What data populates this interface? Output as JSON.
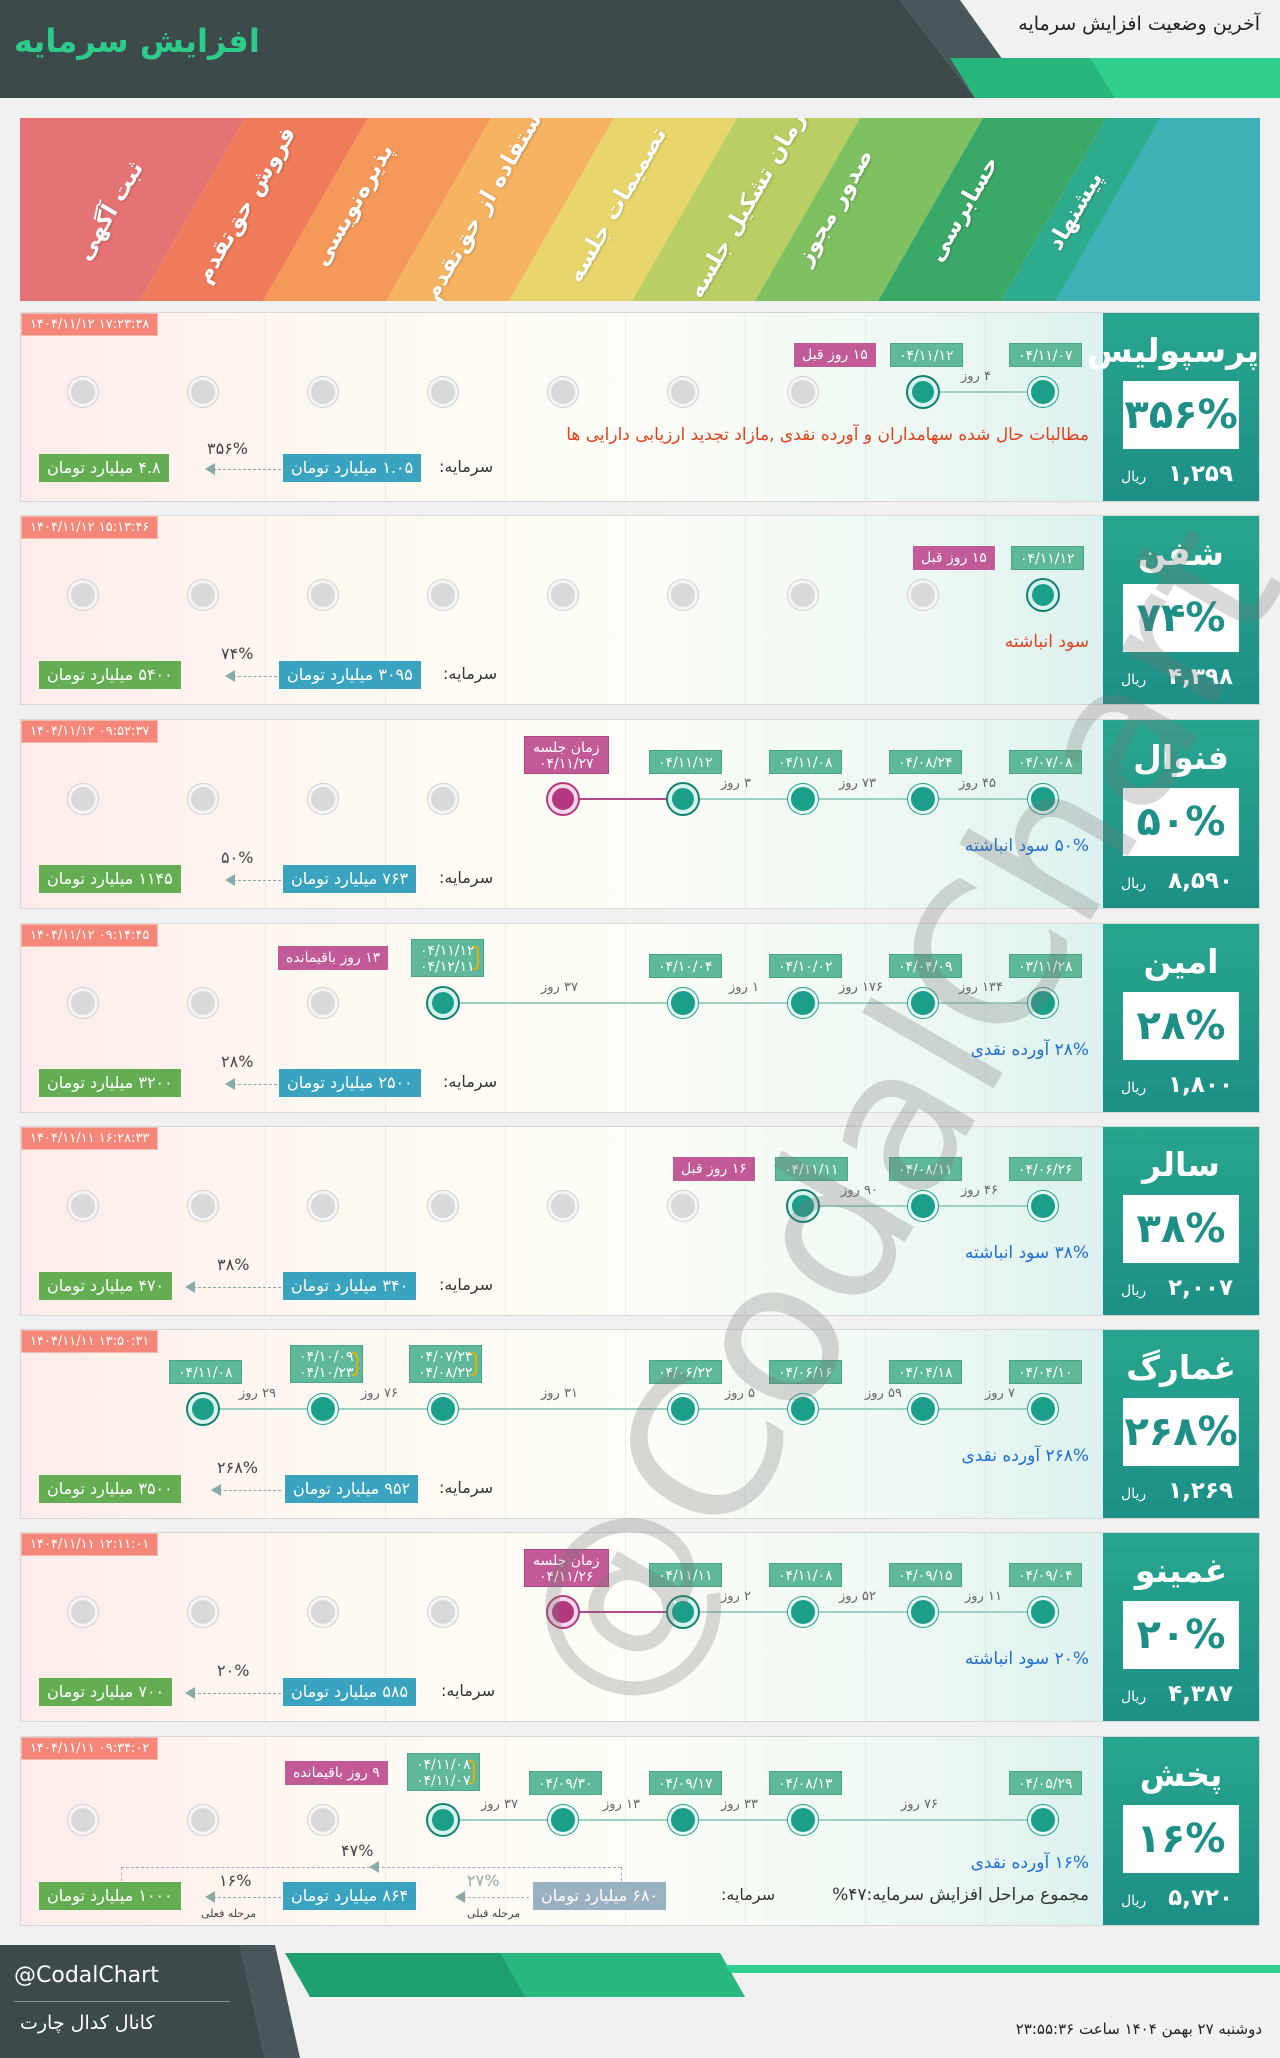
{
  "header": {
    "title": "افزایش سرمایه",
    "subtitle": "آخرین وضعیت افزایش سرمایه"
  },
  "stages": [
    "ثبت آگهی",
    "فروش حق‌تقدم",
    "پذیره‌نویسی",
    "استفاده از حق‌تقدم",
    "تصمیمات جلسه",
    "زمان تشکیل جلسه",
    "صدور مجوز",
    "حسابرسی",
    "پیشنهاد"
  ],
  "colors": {
    "accent": "#1d8f86",
    "timestamp": "#f4877a",
    "days_ago": "#c25a97",
    "capital_box": "#3aa3bf",
    "new_capital_box": "#64ad52"
  },
  "common": {
    "capital_label": "سرمایه:",
    "days_unit": "روز"
  },
  "companies": [
    {
      "name": "پرسپولیس",
      "percent": "۳۵۶%",
      "price": "۱,۲۵۹",
      "currency": "ریال",
      "timestamp": "۱۴۰۴/۱۱/۱۲ ۱۷:۲۳:۳۸",
      "dates": [
        "۰۴/۱۱/۰۷",
        "۰۴/۱۱/۱۲"
      ],
      "ago": "۱۵ روز قبل",
      "days": [
        "۴"
      ],
      "description": "مطالبات حال شده سهامداران و آورده نقدی ,مازاد تجدید ارزیابی دارایی ها",
      "capital": "۱.۰۵ میلیارد تومان",
      "new_capital": "۴.۸ میلیارد تومان",
      "increase": "۳۵۶%"
    },
    {
      "name": "شفن",
      "percent": "۷۴%",
      "price": "۴,۳۹۸",
      "currency": "ریال",
      "timestamp": "۱۴۰۴/۱۱/۱۲ ۱۵:۱۳:۴۶",
      "dates": [
        "۰۴/۱۱/۱۲"
      ],
      "ago": "۱۵ روز قبل",
      "days": [],
      "description": "سود انباشته",
      "capital": "۳۰۹۵ میلیارد تومان",
      "new_capital": "۵۴۰۰ میلیارد تومان",
      "increase": "۷۴%"
    },
    {
      "name": "فنوال",
      "percent": "۵۰%",
      "price": "۸,۵۹۰",
      "currency": "ریال",
      "timestamp": "۱۴۰۴/۱۱/۱۲ ۰۹:۵۲:۳۷",
      "dates": [
        "۰۴/۰۷/۰۸",
        "۰۴/۰۸/۲۴",
        "۰۴/۱۱/۰۸",
        "۰۴/۱۱/۱۲"
      ],
      "meeting": "زمان جلسه",
      "meeting_date": "۰۴/۱۱/۲۷",
      "days": [
        "۴۵",
        "۷۳",
        "۳"
      ],
      "description": "۵۰% سود انباشته",
      "capital": "۷۶۳ میلیارد تومان",
      "new_capital": "۱۱۴۵ میلیارد تومان",
      "increase": "۵۰%"
    },
    {
      "name": "امین",
      "percent": "۲۸%",
      "price": "۱,۸۰۰",
      "currency": "ریال",
      "timestamp": "۱۴۰۴/۱۱/۱۲ ۰۹:۱۴:۴۵",
      "dates": [
        "۰۳/۱۱/۲۸",
        "۰۴/۰۴/۰۹",
        "۰۴/۱۰/۰۲",
        "۰۴/۱۰/۰۴"
      ],
      "pair": [
        "۰۴/۱۱/۱۲",
        "۰۴/۱۲/۱۱"
      ],
      "remaining": "۱۳ روز باقیمانده",
      "days": [
        "۱۳۴",
        "۱۷۶",
        "۱",
        "۳۷"
      ],
      "description": "۲۸% آورده نقدی",
      "capital": "۲۵۰۰ میلیارد تومان",
      "new_capital": "۳۲۰۰ میلیارد تومان",
      "increase": "۲۸%"
    },
    {
      "name": "سالر",
      "percent": "۳۸%",
      "price": "۲,۰۰۷",
      "currency": "ریال",
      "timestamp": "۱۴۰۴/۱۱/۱۱ ۱۶:۲۸:۳۳",
      "dates": [
        "۰۴/۰۶/۲۶",
        "۰۴/۰۸/۱۱",
        "۰۴/۱۱/۱۱"
      ],
      "ago": "۱۶ روز قبل",
      "days": [
        "۴۶",
        "۹۰"
      ],
      "description": "۳۸% سود انباشته",
      "capital": "۳۴۰ میلیارد تومان",
      "new_capital": "۴۷۰ میلیارد تومان",
      "increase": "۳۸%"
    },
    {
      "name": "غمارگ",
      "percent": "۲۶۸%",
      "price": "۱,۲۶۹",
      "currency": "ریال",
      "timestamp": "۱۴۰۴/۱۱/۱۱ ۱۳:۵۰:۳۱",
      "dates": [
        "۰۴/۰۴/۱۰",
        "۰۴/۰۴/۱۸",
        "۰۴/۰۶/۱۶",
        "۰۴/۰۶/۲۲"
      ],
      "pair": [
        "۰۴/۰۷/۲۳",
        "۰۴/۰۸/۲۲"
      ],
      "pair2": [
        "۰۴/۱۰/۰۹",
        "۰۴/۱۰/۲۳"
      ],
      "last": "۰۴/۱۱/۰۸",
      "days": [
        "۷",
        "۵۹",
        "۵",
        "۳۱",
        "۷۶",
        "۲۹"
      ],
      "description": "۲۶۸% آورده نقدی",
      "capital": "۹۵۲ میلیارد تومان",
      "new_capital": "۳۵۰۰ میلیارد تومان",
      "increase": "۲۶۸%"
    },
    {
      "name": "غمینو",
      "percent": "۲۰%",
      "price": "۴,۳۸۷",
      "currency": "ریال",
      "timestamp": "۱۴۰۴/۱۱/۱۱ ۱۲:۱۱:۰۱",
      "dates": [
        "۰۴/۰۹/۰۴",
        "۰۴/۰۹/۱۵",
        "۰۴/۱۱/۰۸",
        "۰۴/۱۱/۱۱"
      ],
      "meeting": "زمان جلسه",
      "meeting_date": "۰۴/۱۱/۲۶",
      "days": [
        "۱۱",
        "۵۲",
        "۲"
      ],
      "description": "۲۰% سود انباشته",
      "capital": "۵۸۵ میلیارد تومان",
      "new_capital": "۷۰۰ میلیارد تومان",
      "increase": "۲۰%"
    },
    {
      "name": "پخش",
      "percent": "۱۶%",
      "price": "۵,۷۲۰",
      "currency": "ریال",
      "timestamp": "۱۴۰۴/۱۱/۱۱ ۰۹:۳۴:۰۲",
      "dates": [
        "۰۴/۰۵/۲۹",
        "۰۴/۰۸/۱۳",
        "۰۴/۰۹/۱۷",
        "۰۴/۰۹/۳۰"
      ],
      "pair": [
        "۰۴/۱۱/۰۸",
        "۰۴/۱۱/۰۷"
      ],
      "remaining": "۹ روز باقیمانده",
      "days": [
        "۷۶",
        "۳۳",
        "۱۳",
        "۳۷"
      ],
      "description": "۱۶% آورده نقدی",
      "total_note": "مجموع مراحل افزایش سرمایه:۴۷%",
      "capital": "۸۶۴ میلیارد تومان",
      "prev_capital": "۶۸۰ میلیارد تومان",
      "new_capital": "۱۰۰۰ میلیارد تومان",
      "increase": "۱۶%",
      "prev_increase": "۲۷%",
      "total_increase": "۴۷%",
      "current_stage_label": "مرحله فعلی",
      "prev_stage_label": "مرحله قبلی"
    }
  ],
  "watermark": "@CodalChart",
  "footer": {
    "handle": "@CodalChart",
    "channel": "کانال کدال چارت",
    "datetime": "دوشنبه ۲۷ بهمن ۱۴۰۴ ساعت ۲۳:۵۵:۳۶"
  }
}
